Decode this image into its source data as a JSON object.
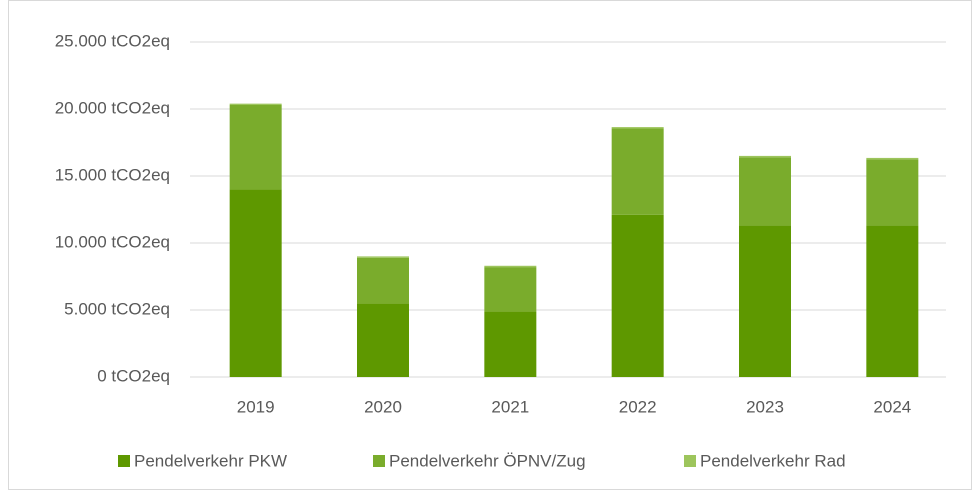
{
  "chart_data": {
    "type": "stacked_bar",
    "categories": [
      "2019",
      "2020",
      "2021",
      "2022",
      "2023",
      "2024"
    ],
    "series": [
      {
        "name": "Pendelverkehr PKW",
        "color": "#5e9800",
        "values": [
          14000,
          5500,
          4900,
          12100,
          11300,
          11300
        ]
      },
      {
        "name": "Pendelverkehr ÖPNV/Zug",
        "color": "#7aac2c",
        "values": [
          6300,
          3400,
          3300,
          6450,
          5100,
          4950
        ]
      },
      {
        "name": "Pendelverkehr Rad",
        "color": "#9dc55c",
        "values": [
          100,
          100,
          100,
          100,
          100,
          100
        ]
      }
    ],
    "ylim": [
      0,
      25000
    ],
    "yticks": [
      {
        "value": 0,
        "label": "0 tCO2eq"
      },
      {
        "value": 5000,
        "label": "5.000 tCO2eq"
      },
      {
        "value": 10000,
        "label": "10.000 tCO2eq"
      },
      {
        "value": 15000,
        "label": "15.000 tCO2eq"
      },
      {
        "value": 20000,
        "label": "20.000 tCO2eq"
      },
      {
        "value": 25000,
        "label": "25.000 tCO2eq"
      }
    ],
    "grid": true,
    "legend": "bottom"
  }
}
